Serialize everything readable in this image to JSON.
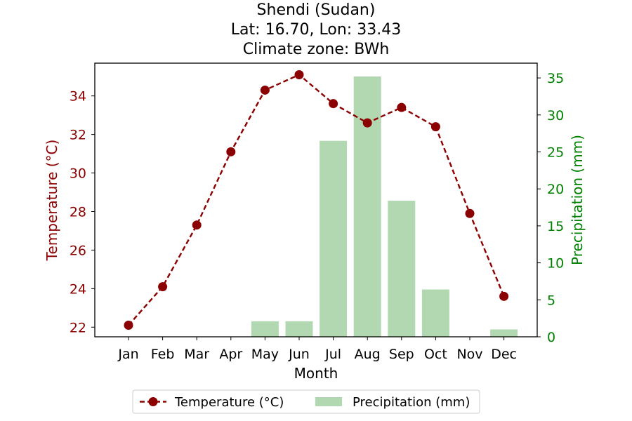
{
  "chart_data": {
    "type": "line+bar",
    "title_lines": [
      "Shendi (Sudan)",
      "Lat: 16.70, Lon: 33.43",
      "Climate zone: BWh"
    ],
    "xlabel": "Month",
    "ylabel_left": "Temperature (°C)",
    "ylabel_right": "Precipitation (mm)",
    "categories": [
      "Jan",
      "Feb",
      "Mar",
      "Apr",
      "May",
      "Jun",
      "Jul",
      "Aug",
      "Sep",
      "Oct",
      "Nov",
      "Dec"
    ],
    "ylim_left": [
      21.5,
      35.7
    ],
    "ylim_right": [
      0,
      37
    ],
    "yticks_left": [
      22,
      24,
      26,
      28,
      30,
      32,
      34
    ],
    "yticks_right": [
      0,
      5,
      10,
      15,
      20,
      25,
      30,
      35
    ],
    "legend_position": "bottom-center",
    "series": [
      {
        "name": "Temperature (°C)",
        "type": "line",
        "axis": "left",
        "color": "#8b0000",
        "line_style": "dashed",
        "marker": "circle",
        "values": [
          22.1,
          24.1,
          27.3,
          31.1,
          34.3,
          35.1,
          33.6,
          32.6,
          33.4,
          32.4,
          27.9,
          23.6
        ]
      },
      {
        "name": "Precipitation (mm)",
        "type": "bar",
        "axis": "right",
        "color": "#b2d8b2",
        "values": [
          0,
          0,
          0,
          0,
          2.1,
          2.1,
          26.5,
          35.2,
          18.4,
          6.4,
          0,
          1.0
        ]
      }
    ],
    "colors": {
      "left_axis": "#8b0000",
      "right_axis": "#008000",
      "frame": "#000000"
    }
  }
}
